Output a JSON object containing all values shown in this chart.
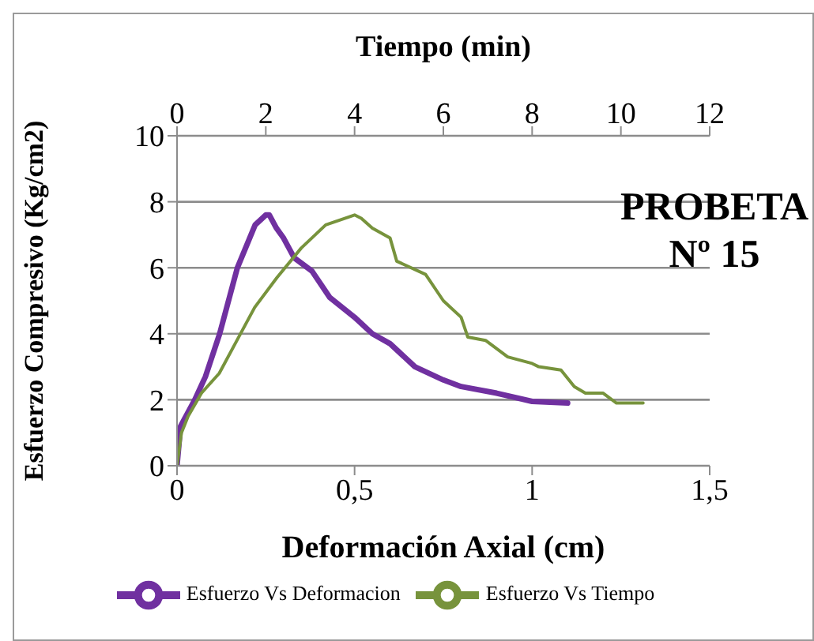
{
  "chart_data": {
    "type": "line",
    "xlabel": "Deformación Axial (cm)",
    "ylabel": "Esfuerzo Compresivo (Kg/cm2)",
    "x2label": "Tiempo (min)",
    "xlim": [
      0,
      1.5
    ],
    "xticks": [
      0,
      {
        "value": 0.5,
        "label": "0,5"
      },
      1,
      {
        "value": 1.5,
        "label": "1,5"
      }
    ],
    "x2lim": [
      0,
      12
    ],
    "x2ticks": [
      0,
      2,
      4,
      6,
      8,
      10,
      12
    ],
    "ylim": [
      0,
      10
    ],
    "yticks": [
      0,
      2,
      4,
      6,
      8,
      10
    ],
    "grid": "y",
    "legend": "bottom",
    "marker": "none",
    "line_style": "solid",
    "annotations": [
      "PROBETA Nº 15"
    ],
    "series": [
      {
        "name": "Esfuerzo Vs Deformacion",
        "color": "#7030a0",
        "x": [
          0,
          0.01,
          0.05,
          0.08,
          0.12,
          0.17,
          0.22,
          0.25,
          0.26,
          0.28,
          0.3,
          0.33,
          0.38,
          0.43,
          0.5,
          0.55,
          0.6,
          0.67,
          0.75,
          0.8,
          0.9,
          1.0,
          1.1
        ],
        "values": [
          0,
          1.2,
          2,
          2.7,
          4,
          6,
          7.3,
          7.6,
          7.6,
          7.2,
          6.9,
          6.3,
          5.9,
          5.1,
          4.5,
          4.0,
          3.7,
          3.0,
          2.6,
          2.4,
          2.2,
          1.95,
          1.9
        ]
      },
      {
        "name": "Esfuerzo Vs Tiempo",
        "color": "#77933c",
        "axis": "x2",
        "x": [
          0,
          0.1,
          0.25,
          0.55,
          0.95,
          1.35,
          1.75,
          2.25,
          2.8,
          3.35,
          4,
          4.15,
          4.4,
          4.8,
          4.95,
          5.6,
          6,
          6.4,
          6.55,
          6.95,
          7.45,
          8,
          8.15,
          8.65,
          8.95,
          9.2,
          9.6,
          9.9,
          10.5
        ],
        "values": [
          0,
          1,
          1.5,
          2.2,
          2.8,
          3.8,
          4.8,
          5.7,
          6.6,
          7.3,
          7.6,
          7.5,
          7.2,
          6.9,
          6.2,
          5.8,
          5,
          4.5,
          3.9,
          3.8,
          3.3,
          3.1,
          3,
          2.9,
          2.4,
          2.2,
          2.2,
          1.9,
          1.9
        ]
      }
    ]
  }
}
